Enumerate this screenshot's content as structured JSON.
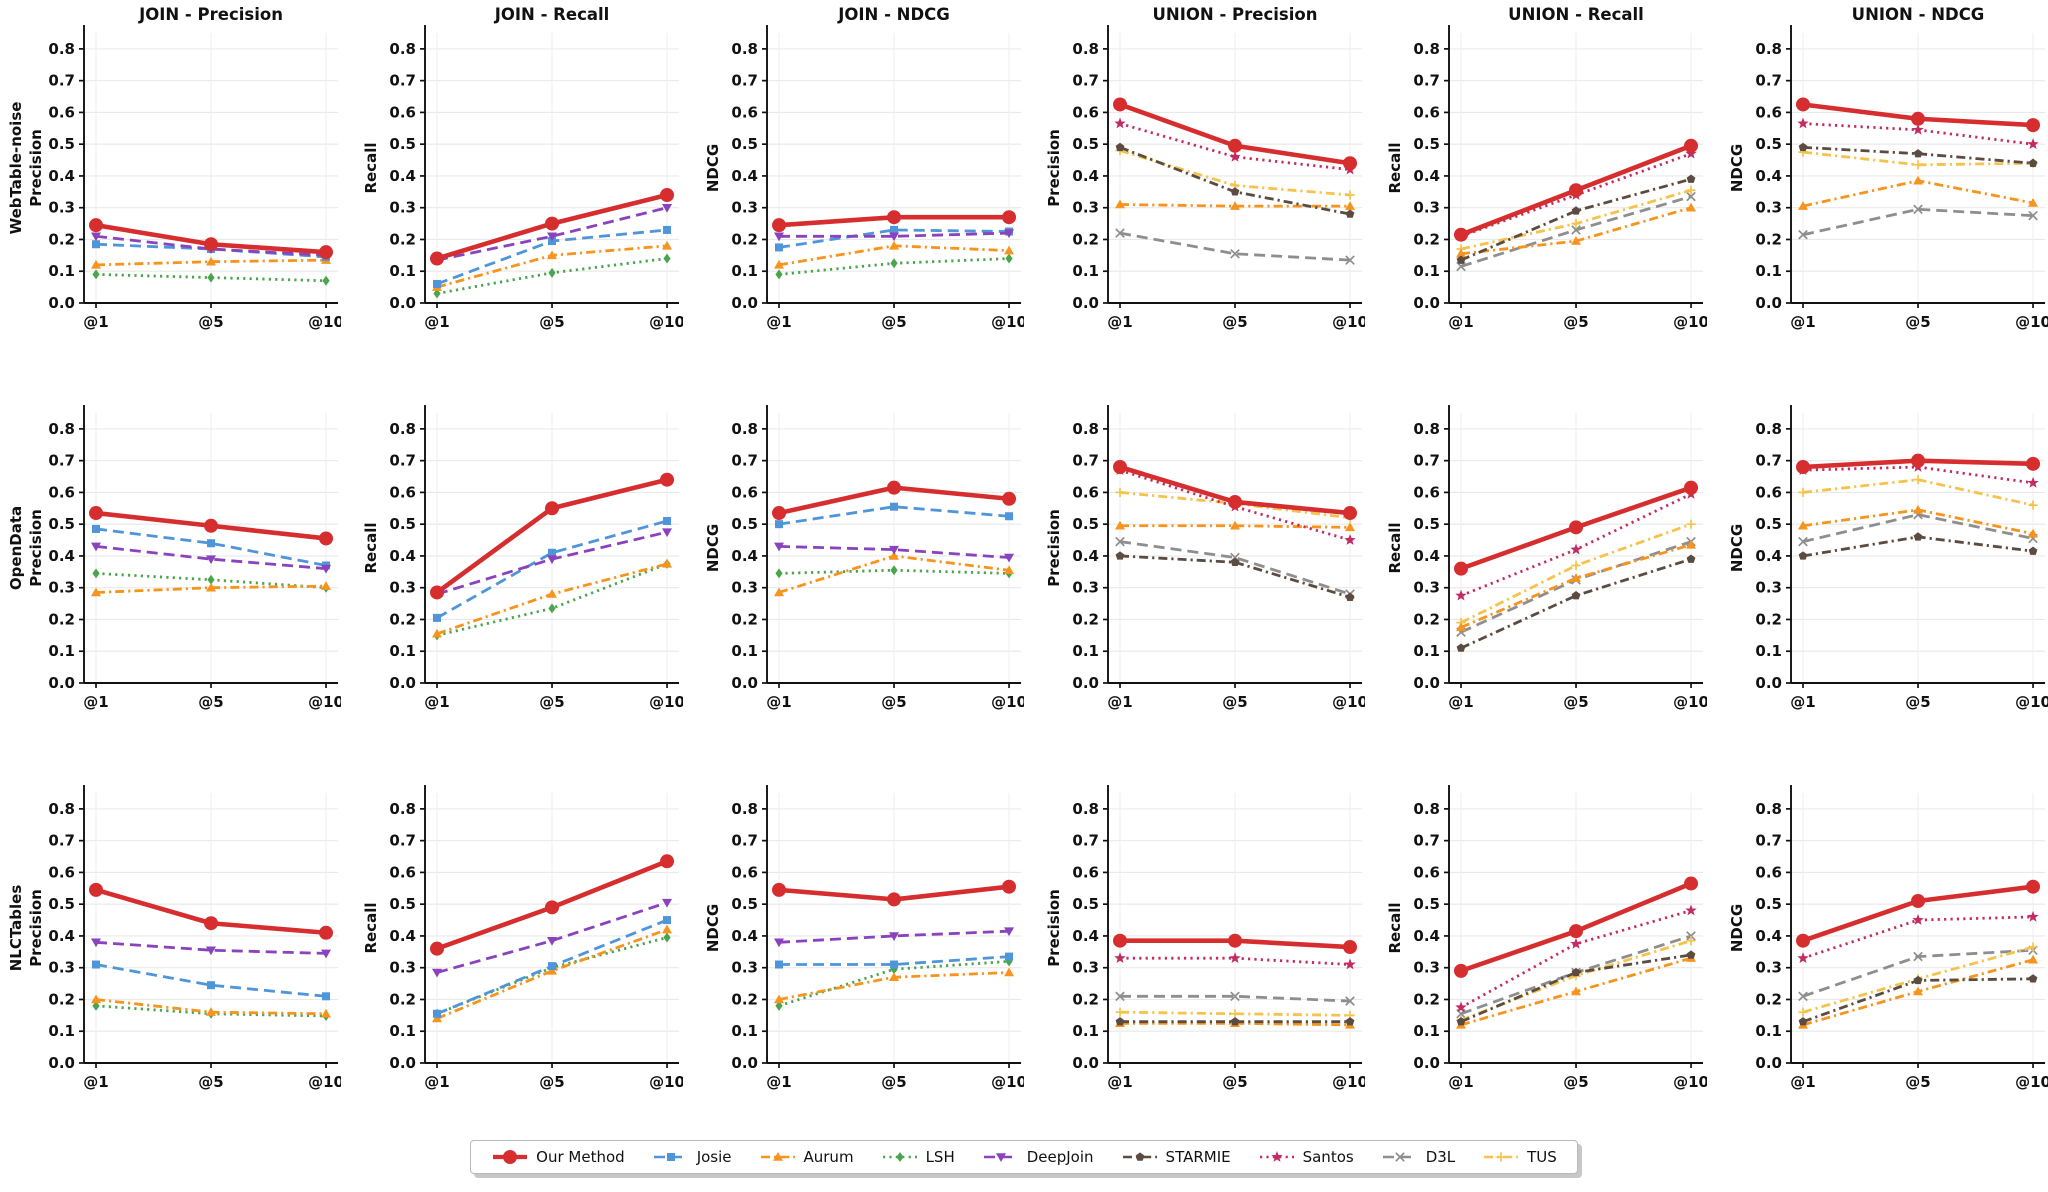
{
  "figure": {
    "col_titles": [
      "JOIN - Precision",
      "JOIN - Recall",
      "JOIN - NDCG",
      "UNION - Precision",
      "UNION - Recall",
      "UNION - NDCG"
    ],
    "row_labels": [
      "WebTable-noise",
      "OpenData",
      "NLCTables"
    ],
    "col_metrics": [
      "Precision",
      "Recall",
      "NDCG",
      "Precision",
      "Recall",
      "NDCG"
    ],
    "x_ticklabels": [
      "@1",
      "@5",
      "@10"
    ],
    "y_ticks": [
      0.0,
      0.1,
      0.2,
      0.3,
      0.4,
      0.5,
      0.6,
      0.7,
      0.8
    ],
    "ylim": [
      0,
      0.85
    ],
    "grid": true,
    "legend_position": "bottom-center"
  },
  "methods": {
    "Our Method": {
      "color": "#d62e2e",
      "line": "solid",
      "marker": "circle",
      "linewidth": 4.6,
      "markersize": 7
    },
    "Josie": {
      "color": "#4e95d9",
      "line": "dashed",
      "marker": "square",
      "linewidth": 2.8,
      "markersize": 4
    },
    "Aurum": {
      "color": "#f7941d",
      "line": "dashdot",
      "marker": "triangle",
      "linewidth": 2.8,
      "markersize": 5
    },
    "LSH": {
      "color": "#4ba44e",
      "line": "dotted",
      "marker": "diamond",
      "linewidth": 2.8,
      "markersize": 5
    },
    "DeepJoin": {
      "color": "#8a42bd",
      "line": "dashed",
      "marker": "triangle-down",
      "linewidth": 2.8,
      "markersize": 5
    },
    "STARMIE": {
      "color": "#5c4b41",
      "line": "dashdot",
      "marker": "pentagon",
      "linewidth": 2.8,
      "markersize": 4.6
    },
    "Santos": {
      "color": "#c22b63",
      "line": "dotted",
      "marker": "star",
      "linewidth": 2.8,
      "markersize": 6
    },
    "D3L": {
      "color": "#8e8e8e",
      "line": "dashed",
      "marker": "x",
      "linewidth": 2.8,
      "markersize": 4.2
    },
    "TUS": {
      "color": "#f5c34c",
      "line": "dashdot",
      "marker": "plus",
      "linewidth": 2.8,
      "markersize": 4.6
    }
  },
  "legend": {
    "order": [
      "Our Method",
      "Josie",
      "Aurum",
      "LSH",
      "DeepJoin",
      "STARMIE",
      "Santos",
      "D3L",
      "TUS"
    ]
  },
  "chart_data": [
    {
      "type": "line",
      "dataset": "WebTable-noise",
      "group": "JOIN",
      "metric": "Precision",
      "x": [
        "@1",
        "@5",
        "@10"
      ],
      "series": [
        {
          "name": "LSH",
          "values": [
            0.09,
            0.08,
            0.07
          ]
        },
        {
          "name": "Aurum",
          "values": [
            0.12,
            0.13,
            0.135
          ]
        },
        {
          "name": "Josie",
          "values": [
            0.185,
            0.17,
            0.145
          ]
        },
        {
          "name": "DeepJoin",
          "values": [
            0.21,
            0.17,
            0.15
          ]
        },
        {
          "name": "Our Method",
          "values": [
            0.245,
            0.185,
            0.16
          ]
        }
      ]
    },
    {
      "type": "line",
      "dataset": "WebTable-noise",
      "group": "JOIN",
      "metric": "Recall",
      "x": [
        "@1",
        "@5",
        "@10"
      ],
      "series": [
        {
          "name": "LSH",
          "values": [
            0.03,
            0.095,
            0.14
          ]
        },
        {
          "name": "Aurum",
          "values": [
            0.05,
            0.15,
            0.18
          ]
        },
        {
          "name": "Josie",
          "values": [
            0.06,
            0.195,
            0.23
          ]
        },
        {
          "name": "DeepJoin",
          "values": [
            0.135,
            0.21,
            0.3
          ]
        },
        {
          "name": "Our Method",
          "values": [
            0.14,
            0.25,
            0.34
          ]
        }
      ]
    },
    {
      "type": "line",
      "dataset": "WebTable-noise",
      "group": "JOIN",
      "metric": "NDCG",
      "x": [
        "@1",
        "@5",
        "@10"
      ],
      "series": [
        {
          "name": "LSH",
          "values": [
            0.09,
            0.125,
            0.14
          ]
        },
        {
          "name": "Aurum",
          "values": [
            0.12,
            0.18,
            0.165
          ]
        },
        {
          "name": "Josie",
          "values": [
            0.175,
            0.23,
            0.225
          ]
        },
        {
          "name": "DeepJoin",
          "values": [
            0.21,
            0.21,
            0.22
          ]
        },
        {
          "name": "Our Method",
          "values": [
            0.245,
            0.27,
            0.27
          ]
        }
      ]
    },
    {
      "type": "line",
      "dataset": "WebTable-noise",
      "group": "UNION",
      "metric": "Precision",
      "x": [
        "@1",
        "@5",
        "@10"
      ],
      "series": [
        {
          "name": "D3L",
          "values": [
            0.22,
            0.155,
            0.135
          ]
        },
        {
          "name": "TUS",
          "values": [
            0.48,
            0.37,
            0.34
          ]
        },
        {
          "name": "Aurum",
          "values": [
            0.31,
            0.305,
            0.305
          ]
        },
        {
          "name": "STARMIE",
          "values": [
            0.49,
            0.35,
            0.28
          ]
        },
        {
          "name": "Santos",
          "values": [
            0.565,
            0.46,
            0.42
          ]
        },
        {
          "name": "Our Method",
          "values": [
            0.625,
            0.495,
            0.44
          ]
        }
      ]
    },
    {
      "type": "line",
      "dataset": "WebTable-noise",
      "group": "UNION",
      "metric": "Recall",
      "x": [
        "@1",
        "@5",
        "@10"
      ],
      "series": [
        {
          "name": "D3L",
          "values": [
            0.115,
            0.23,
            0.335
          ]
        },
        {
          "name": "TUS",
          "values": [
            0.17,
            0.25,
            0.355
          ]
        },
        {
          "name": "Aurum",
          "values": [
            0.155,
            0.195,
            0.3
          ]
        },
        {
          "name": "STARMIE",
          "values": [
            0.135,
            0.29,
            0.39
          ]
        },
        {
          "name": "Santos",
          "values": [
            0.21,
            0.34,
            0.47
          ]
        },
        {
          "name": "Our Method",
          "values": [
            0.215,
            0.355,
            0.495
          ]
        }
      ]
    },
    {
      "type": "line",
      "dataset": "WebTable-noise",
      "group": "UNION",
      "metric": "NDCG",
      "x": [
        "@1",
        "@5",
        "@10"
      ],
      "series": [
        {
          "name": "D3L",
          "values": [
            0.215,
            0.295,
            0.275
          ]
        },
        {
          "name": "TUS",
          "values": [
            0.475,
            0.435,
            0.44
          ]
        },
        {
          "name": "Aurum",
          "values": [
            0.305,
            0.385,
            0.315
          ]
        },
        {
          "name": "STARMIE",
          "values": [
            0.49,
            0.47,
            0.44
          ]
        },
        {
          "name": "Santos",
          "values": [
            0.565,
            0.545,
            0.5
          ]
        },
        {
          "name": "Our Method",
          "values": [
            0.625,
            0.58,
            0.56
          ]
        }
      ]
    },
    {
      "type": "line",
      "dataset": "OpenData",
      "group": "JOIN",
      "metric": "Precision",
      "x": [
        "@1",
        "@5",
        "@10"
      ],
      "series": [
        {
          "name": "LSH",
          "values": [
            0.345,
            0.325,
            0.3
          ]
        },
        {
          "name": "Aurum",
          "values": [
            0.285,
            0.3,
            0.305
          ]
        },
        {
          "name": "Josie",
          "values": [
            0.485,
            0.44,
            0.37
          ]
        },
        {
          "name": "DeepJoin",
          "values": [
            0.43,
            0.39,
            0.36
          ]
        },
        {
          "name": "Our Method",
          "values": [
            0.535,
            0.495,
            0.455
          ]
        }
      ]
    },
    {
      "type": "line",
      "dataset": "OpenData",
      "group": "JOIN",
      "metric": "Recall",
      "x": [
        "@1",
        "@5",
        "@10"
      ],
      "series": [
        {
          "name": "LSH",
          "values": [
            0.15,
            0.235,
            0.375
          ]
        },
        {
          "name": "Aurum",
          "values": [
            0.155,
            0.28,
            0.375
          ]
        },
        {
          "name": "Josie",
          "values": [
            0.205,
            0.41,
            0.51
          ]
        },
        {
          "name": "DeepJoin",
          "values": [
            0.28,
            0.39,
            0.475
          ]
        },
        {
          "name": "Our Method",
          "values": [
            0.285,
            0.55,
            0.64
          ]
        }
      ]
    },
    {
      "type": "line",
      "dataset": "OpenData",
      "group": "JOIN",
      "metric": "NDCG",
      "x": [
        "@1",
        "@5",
        "@10"
      ],
      "series": [
        {
          "name": "LSH",
          "values": [
            0.345,
            0.355,
            0.345
          ]
        },
        {
          "name": "Aurum",
          "values": [
            0.285,
            0.4,
            0.355
          ]
        },
        {
          "name": "Josie",
          "values": [
            0.5,
            0.555,
            0.525
          ]
        },
        {
          "name": "DeepJoin",
          "values": [
            0.43,
            0.42,
            0.395
          ]
        },
        {
          "name": "Our Method",
          "values": [
            0.535,
            0.615,
            0.58
          ]
        }
      ]
    },
    {
      "type": "line",
      "dataset": "OpenData",
      "group": "UNION",
      "metric": "Precision",
      "x": [
        "@1",
        "@5",
        "@10"
      ],
      "series": [
        {
          "name": "D3L",
          "values": [
            0.445,
            0.395,
            0.28
          ]
        },
        {
          "name": "TUS",
          "values": [
            0.6,
            0.565,
            0.52
          ]
        },
        {
          "name": "Aurum",
          "values": [
            0.495,
            0.495,
            0.49
          ]
        },
        {
          "name": "STARMIE",
          "values": [
            0.4,
            0.38,
            0.27
          ]
        },
        {
          "name": "Santos",
          "values": [
            0.67,
            0.555,
            0.45
          ]
        },
        {
          "name": "Our Method",
          "values": [
            0.68,
            0.57,
            0.535
          ]
        }
      ]
    },
    {
      "type": "line",
      "dataset": "OpenData",
      "group": "UNION",
      "metric": "Recall",
      "x": [
        "@1",
        "@5",
        "@10"
      ],
      "series": [
        {
          "name": "D3L",
          "values": [
            0.16,
            0.325,
            0.445
          ]
        },
        {
          "name": "TUS",
          "values": [
            0.19,
            0.37,
            0.5
          ]
        },
        {
          "name": "Aurum",
          "values": [
            0.175,
            0.33,
            0.435
          ]
        },
        {
          "name": "STARMIE",
          "values": [
            0.11,
            0.275,
            0.39
          ]
        },
        {
          "name": "Santos",
          "values": [
            0.275,
            0.42,
            0.595
          ]
        },
        {
          "name": "Our Method",
          "values": [
            0.36,
            0.49,
            0.615
          ]
        }
      ]
    },
    {
      "type": "line",
      "dataset": "OpenData",
      "group": "UNION",
      "metric": "NDCG",
      "x": [
        "@1",
        "@5",
        "@10"
      ],
      "series": [
        {
          "name": "D3L",
          "values": [
            0.445,
            0.53,
            0.455
          ]
        },
        {
          "name": "TUS",
          "values": [
            0.6,
            0.64,
            0.56
          ]
        },
        {
          "name": "Aurum",
          "values": [
            0.495,
            0.545,
            0.47
          ]
        },
        {
          "name": "STARMIE",
          "values": [
            0.4,
            0.46,
            0.415
          ]
        },
        {
          "name": "Santos",
          "values": [
            0.67,
            0.68,
            0.63
          ]
        },
        {
          "name": "Our Method",
          "values": [
            0.68,
            0.7,
            0.69
          ]
        }
      ]
    },
    {
      "type": "line",
      "dataset": "NLCTables",
      "group": "JOIN",
      "metric": "Precision",
      "x": [
        "@1",
        "@5",
        "@10"
      ],
      "series": [
        {
          "name": "LSH",
          "values": [
            0.18,
            0.155,
            0.148
          ]
        },
        {
          "name": "Aurum",
          "values": [
            0.2,
            0.16,
            0.155
          ]
        },
        {
          "name": "Josie",
          "values": [
            0.31,
            0.245,
            0.21
          ]
        },
        {
          "name": "DeepJoin",
          "values": [
            0.38,
            0.355,
            0.345
          ]
        },
        {
          "name": "Our Method",
          "values": [
            0.545,
            0.44,
            0.41
          ]
        }
      ]
    },
    {
      "type": "line",
      "dataset": "NLCTables",
      "group": "JOIN",
      "metric": "Recall",
      "x": [
        "@1",
        "@5",
        "@10"
      ],
      "series": [
        {
          "name": "LSH",
          "values": [
            0.155,
            0.3,
            0.395
          ]
        },
        {
          "name": "Aurum",
          "values": [
            0.14,
            0.29,
            0.42
          ]
        },
        {
          "name": "Josie",
          "values": [
            0.155,
            0.305,
            0.45
          ]
        },
        {
          "name": "DeepJoin",
          "values": [
            0.285,
            0.385,
            0.505
          ]
        },
        {
          "name": "Our Method",
          "values": [
            0.36,
            0.49,
            0.635
          ]
        }
      ]
    },
    {
      "type": "line",
      "dataset": "NLCTables",
      "group": "JOIN",
      "metric": "NDCG",
      "x": [
        "@1",
        "@5",
        "@10"
      ],
      "series": [
        {
          "name": "LSH",
          "values": [
            0.18,
            0.295,
            0.32
          ]
        },
        {
          "name": "Aurum",
          "values": [
            0.2,
            0.27,
            0.285
          ]
        },
        {
          "name": "Josie",
          "values": [
            0.31,
            0.31,
            0.335
          ]
        },
        {
          "name": "DeepJoin",
          "values": [
            0.38,
            0.4,
            0.415
          ]
        },
        {
          "name": "Our Method",
          "values": [
            0.545,
            0.515,
            0.555
          ]
        }
      ]
    },
    {
      "type": "line",
      "dataset": "NLCTables",
      "group": "UNION",
      "metric": "Precision",
      "x": [
        "@1",
        "@5",
        "@10"
      ],
      "series": [
        {
          "name": "D3L",
          "values": [
            0.21,
            0.21,
            0.195
          ]
        },
        {
          "name": "TUS",
          "values": [
            0.16,
            0.155,
            0.15
          ]
        },
        {
          "name": "Aurum",
          "values": [
            0.125,
            0.125,
            0.12
          ]
        },
        {
          "name": "STARMIE",
          "values": [
            0.13,
            0.13,
            0.13
          ]
        },
        {
          "name": "Santos",
          "values": [
            0.33,
            0.33,
            0.31
          ]
        },
        {
          "name": "Our Method",
          "values": [
            0.385,
            0.385,
            0.365
          ]
        }
      ]
    },
    {
      "type": "line",
      "dataset": "NLCTables",
      "group": "UNION",
      "metric": "Recall",
      "x": [
        "@1",
        "@5",
        "@10"
      ],
      "series": [
        {
          "name": "D3L",
          "values": [
            0.155,
            0.285,
            0.4
          ]
        },
        {
          "name": "TUS",
          "values": [
            0.135,
            0.275,
            0.385
          ]
        },
        {
          "name": "Aurum",
          "values": [
            0.12,
            0.225,
            0.33
          ]
        },
        {
          "name": "STARMIE",
          "values": [
            0.13,
            0.285,
            0.34
          ]
        },
        {
          "name": "Santos",
          "values": [
            0.175,
            0.375,
            0.48
          ]
        },
        {
          "name": "Our Method",
          "values": [
            0.29,
            0.415,
            0.565
          ]
        }
      ]
    },
    {
      "type": "line",
      "dataset": "NLCTables",
      "group": "UNION",
      "metric": "NDCG",
      "x": [
        "@1",
        "@5",
        "@10"
      ],
      "series": [
        {
          "name": "D3L",
          "values": [
            0.21,
            0.335,
            0.355
          ]
        },
        {
          "name": "TUS",
          "values": [
            0.16,
            0.265,
            0.365
          ]
        },
        {
          "name": "Aurum",
          "values": [
            0.12,
            0.225,
            0.325
          ]
        },
        {
          "name": "STARMIE",
          "values": [
            0.13,
            0.26,
            0.265
          ]
        },
        {
          "name": "Santos",
          "values": [
            0.33,
            0.45,
            0.46
          ]
        },
        {
          "name": "Our Method",
          "values": [
            0.385,
            0.51,
            0.555
          ]
        }
      ]
    }
  ]
}
